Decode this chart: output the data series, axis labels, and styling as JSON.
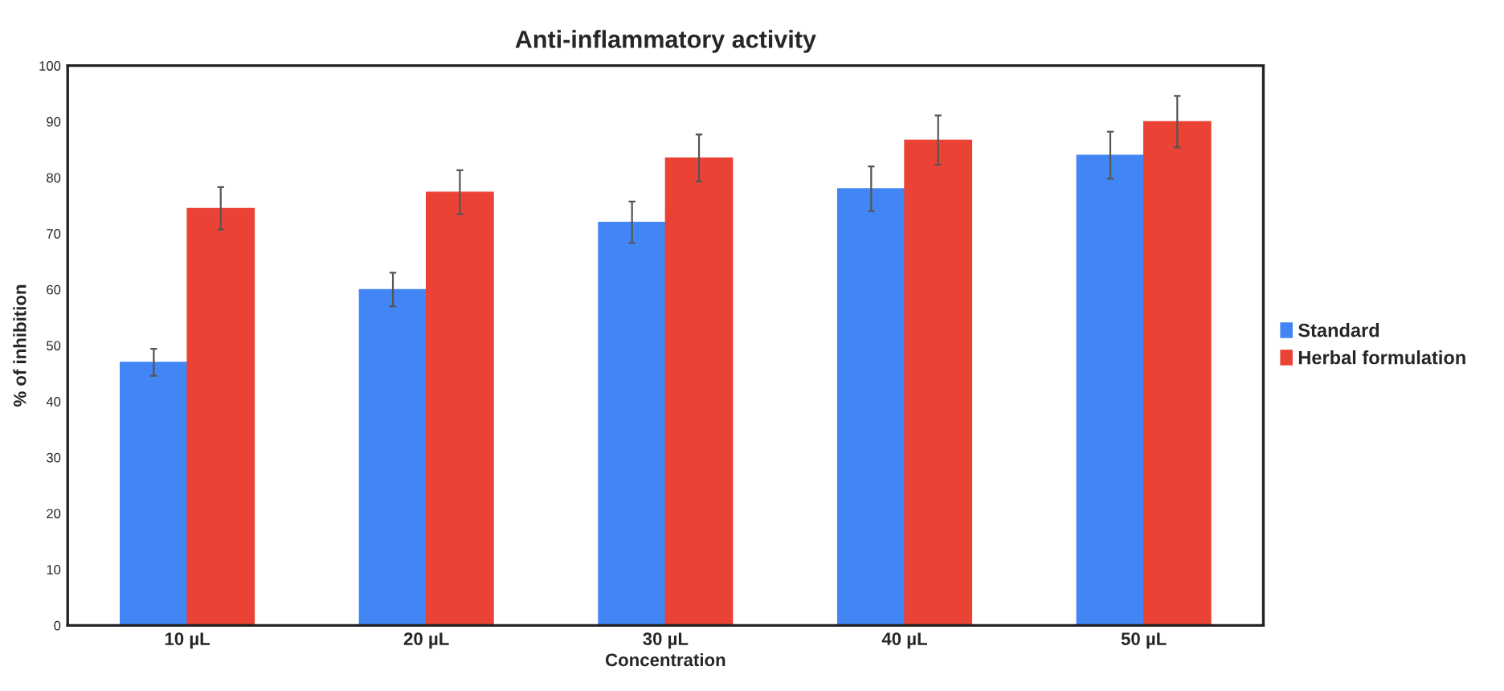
{
  "chart_data": {
    "type": "bar",
    "title": "Anti-inflammatory activity",
    "xlabel": "Concentration",
    "ylabel": "% of inhibition",
    "categories": [
      "10 µL",
      "20 µL",
      "30 µL",
      "40 µL",
      "50 µL"
    ],
    "series": [
      {
        "name": "Standard",
        "color": "#4285f4",
        "values": [
          47,
          60,
          72,
          78,
          84
        ],
        "errors": [
          2.4,
          3,
          3.7,
          4,
          4.2
        ]
      },
      {
        "name": "Herbal formulation",
        "color": "#ea4335",
        "values": [
          74.5,
          77.4,
          83.5,
          86.7,
          90
        ],
        "errors": [
          3.8,
          3.9,
          4.2,
          4.4,
          4.6
        ]
      }
    ],
    "ylim": [
      0,
      100
    ],
    "yticks": [
      0,
      10,
      20,
      30,
      40,
      50,
      60,
      70,
      80,
      90,
      100
    ],
    "grid": false,
    "legend": "right"
  }
}
